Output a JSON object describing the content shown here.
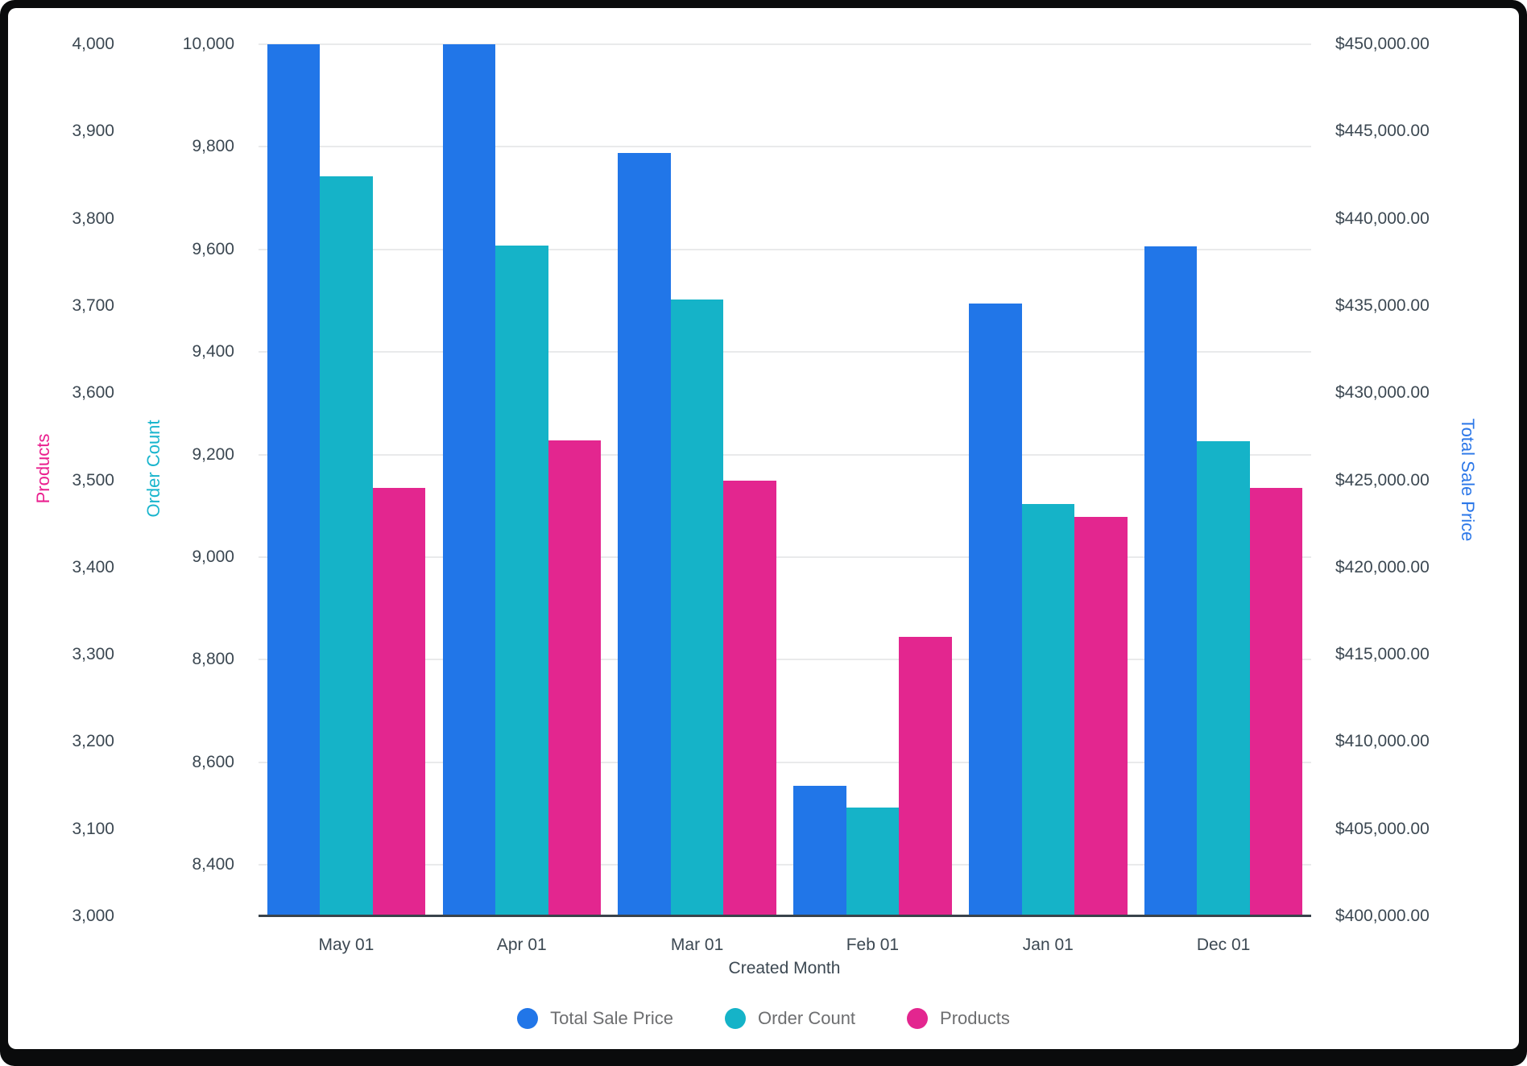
{
  "chart_data": {
    "type": "bar",
    "title": "",
    "xlabel": "Created Month",
    "categories": [
      "May 01",
      "Apr 01",
      "Mar 01",
      "Feb 01",
      "Jan 01",
      "Dec 01"
    ],
    "series": [
      {
        "name": "Total Sale Price",
        "axis": "price",
        "color": "#2176e8",
        "values": [
          450000,
          450000,
          443750,
          407500,
          435150,
          438400
        ]
      },
      {
        "name": "Order Count",
        "axis": "order",
        "color": "#15b3c8",
        "values": [
          9742,
          9608,
          9502,
          8512,
          9104,
          9226
        ]
      },
      {
        "name": "Products",
        "axis": "products",
        "color": "#e3268f",
        "values": [
          3491,
          3546,
          3500,
          3320,
          3458,
          3491
        ]
      }
    ],
    "axes": {
      "products": {
        "label": "Products",
        "label_color": "#ea1f8e",
        "side": "left-outer",
        "min": 3000,
        "max": 4000,
        "ticks": [
          {
            "v": 4000,
            "label": "4,000"
          },
          {
            "v": 3900,
            "label": "3,900"
          },
          {
            "v": 3800,
            "label": "3,800"
          },
          {
            "v": 3700,
            "label": "3,700"
          },
          {
            "v": 3600,
            "label": "3,600"
          },
          {
            "v": 3500,
            "label": "3,500"
          },
          {
            "v": 3400,
            "label": "3,400"
          },
          {
            "v": 3300,
            "label": "3,300"
          },
          {
            "v": 3200,
            "label": "3,200"
          },
          {
            "v": 3100,
            "label": "3,100"
          },
          {
            "v": 3000,
            "label": "3,000"
          }
        ]
      },
      "order": {
        "label": "Order Count",
        "label_color": "#19b5cd",
        "side": "left-inner",
        "min": 8300,
        "max": 10000,
        "ticks": [
          {
            "v": 10000,
            "label": "10,000"
          },
          {
            "v": 9800,
            "label": "9,800"
          },
          {
            "v": 9600,
            "label": "9,600"
          },
          {
            "v": 9400,
            "label": "9,400"
          },
          {
            "v": 9200,
            "label": "9,200"
          },
          {
            "v": 9000,
            "label": "9,000"
          },
          {
            "v": 8800,
            "label": "8,800"
          },
          {
            "v": 8600,
            "label": "8,600"
          },
          {
            "v": 8400,
            "label": "8,400"
          }
        ]
      },
      "price": {
        "label": "Total Sale Price",
        "label_color": "#2b77e8",
        "side": "right",
        "min": 400000,
        "max": 450000,
        "ticks": [
          {
            "v": 450000,
            "label": "$450,000.00"
          },
          {
            "v": 445000,
            "label": "$445,000.00"
          },
          {
            "v": 440000,
            "label": "$440,000.00"
          },
          {
            "v": 435000,
            "label": "$435,000.00"
          },
          {
            "v": 430000,
            "label": "$430,000.00"
          },
          {
            "v": 425000,
            "label": "$425,000.00"
          },
          {
            "v": 420000,
            "label": "$420,000.00"
          },
          {
            "v": 415000,
            "label": "$415,000.00"
          },
          {
            "v": 410000,
            "label": "$410,000.00"
          },
          {
            "v": 405000,
            "label": "$405,000.00"
          },
          {
            "v": 400000,
            "label": "$400,000.00"
          }
        ]
      }
    },
    "gridlines_follow_axis": "order",
    "grid_on": true,
    "legend": {
      "position": "bottom",
      "entries": [
        "Total Sale Price",
        "Order Count",
        "Products"
      ]
    },
    "colors": {
      "grid": "#e9eaeb",
      "axis_line": "#39434b",
      "tick_text": "#3c4852",
      "legend_text": "#6d6e70",
      "frame": "#0a0b0c",
      "background": "#ffffff"
    }
  }
}
